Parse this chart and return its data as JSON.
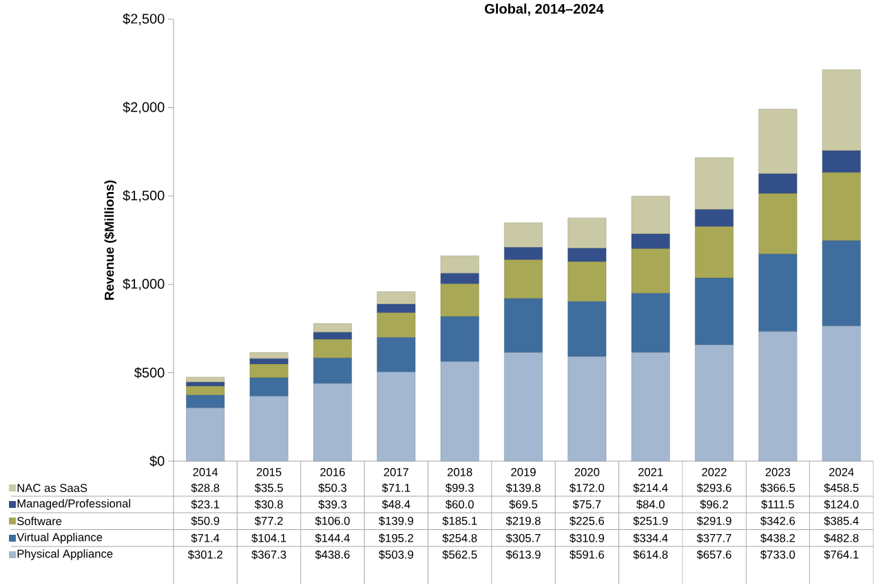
{
  "chart_data": {
    "type": "bar",
    "stacked": true,
    "title": "Global, 2014–2024",
    "ylabel": "Revenue ($Millions)",
    "categories": [
      "2014",
      "2015",
      "2016",
      "2017",
      "2018",
      "2019",
      "2020",
      "2021",
      "2022",
      "2023",
      "2024"
    ],
    "series": [
      {
        "name": "Physical Appliance",
        "color": "#a3b7d0",
        "values": [
          301.2,
          367.3,
          438.6,
          503.9,
          562.5,
          613.9,
          591.6,
          614.8,
          657.6,
          733.0,
          764.1
        ],
        "value_labels": [
          "$301.2",
          "$367.3",
          "$438.6",
          "$503.9",
          "$562.5",
          "$613.9",
          "$591.6",
          "$614.8",
          "$657.6",
          "$733.0",
          "$764.1"
        ]
      },
      {
        "name": "Virtual Appliance",
        "color": "#3f6e9e",
        "values": [
          71.4,
          104.1,
          144.4,
          195.2,
          254.8,
          305.7,
          310.9,
          334.4,
          377.7,
          438.2,
          482.8
        ],
        "value_labels": [
          "$71.4",
          "$104.1",
          "$144.4",
          "$195.2",
          "$254.8",
          "$305.7",
          "$310.9",
          "$334.4",
          "$377.7",
          "$438.2",
          "$482.8"
        ]
      },
      {
        "name": "Software",
        "color": "#a8a856",
        "values": [
          50.9,
          77.2,
          106.0,
          139.9,
          185.1,
          219.8,
          225.6,
          251.9,
          291.9,
          342.6,
          385.4
        ],
        "value_labels": [
          "$50.9",
          "$77.2",
          "$106.0",
          "$139.9",
          "$185.1",
          "$219.8",
          "$225.6",
          "$251.9",
          "$291.9",
          "$342.6",
          "$385.4"
        ]
      },
      {
        "name": "Managed/Professional",
        "color": "#34508a",
        "values": [
          23.1,
          30.8,
          39.3,
          48.4,
          60.0,
          69.5,
          75.7,
          84.0,
          96.2,
          111.5,
          124.0
        ],
        "value_labels": [
          "$23.1",
          "$30.8",
          "$39.3",
          "$48.4",
          "$60.0",
          "$69.5",
          "$75.7",
          "$84.0",
          "$96.2",
          "$111.5",
          "$124.0"
        ]
      },
      {
        "name": "NAC as SaaS",
        "color": "#c9c9a5",
        "values": [
          28.8,
          35.5,
          50.3,
          71.1,
          99.3,
          139.8,
          172.0,
          214.4,
          293.6,
          366.5,
          458.5
        ],
        "value_labels": [
          "$28.8",
          "$35.5",
          "$50.3",
          "$71.1",
          "$99.3",
          "$139.8",
          "$172.0",
          "$214.4",
          "$293.6",
          "$366.5",
          "$458.5"
        ]
      }
    ],
    "ylim": [
      0,
      2500
    ],
    "yticks": [
      {
        "value": 0,
        "label": "$0"
      },
      {
        "value": 500,
        "label": "$500"
      },
      {
        "value": 1000,
        "label": "$1,000"
      },
      {
        "value": 1500,
        "label": "$1,500"
      },
      {
        "value": 2000,
        "label": "$2,000"
      },
      {
        "value": 2500,
        "label": "$2,500"
      }
    ],
    "legend": "bottom left"
  }
}
